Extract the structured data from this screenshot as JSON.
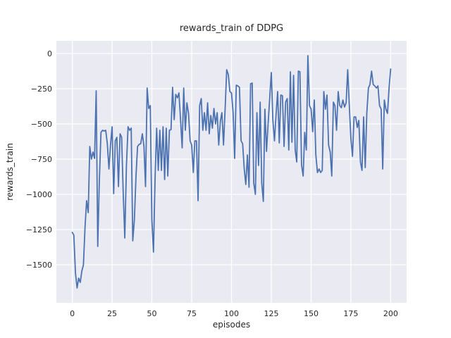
{
  "chart_data": {
    "type": "line",
    "title": "rewards_train of DDPG",
    "xlabel": "episodes",
    "ylabel": "rewards_train",
    "grid": true,
    "legend": null,
    "plot_bg_color": "#EAEAF2",
    "grid_color": "#FFFFFF",
    "figure_bg_color": "#FFFFFF",
    "text_color": "#262626",
    "xlim": [
      -10,
      210
    ],
    "ylim": [
      -1770,
      90
    ],
    "x_tick_values": [
      0,
      25,
      50,
      75,
      100,
      125,
      150,
      175,
      200
    ],
    "x_tick_labels": [
      "0",
      "25",
      "50",
      "75",
      "100",
      "125",
      "150",
      "175",
      "200"
    ],
    "y_tick_values": [
      0,
      -250,
      -500,
      -750,
      -1000,
      -1250,
      -1500
    ],
    "y_tick_labels": [
      "0",
      "−250",
      "−500",
      "−750",
      "−1000",
      "−1250",
      "−1500"
    ],
    "series": [
      {
        "name": "rewards_train",
        "color": "#4C72B0",
        "x_start": 0,
        "x_step": 1,
        "values": [
          -1270,
          -1290,
          -1560,
          -1665,
          -1595,
          -1625,
          -1545,
          -1500,
          -1230,
          -1045,
          -1130,
          -660,
          -750,
          -700,
          -745,
          -265,
          -1370,
          -900,
          -560,
          -545,
          -550,
          -545,
          -640,
          -820,
          -650,
          -520,
          -995,
          -620,
          -595,
          -945,
          -570,
          -595,
          -1000,
          -1310,
          -800,
          -520,
          -545,
          -530,
          -1330,
          -1180,
          -870,
          -660,
          -645,
          -640,
          -570,
          -660,
          -945,
          -245,
          -390,
          -370,
          -1180,
          -1410,
          -880,
          -530,
          -830,
          -545,
          -830,
          -520,
          -895,
          -530,
          -870,
          -545,
          -540,
          -240,
          -470,
          -290,
          -315,
          -280,
          -470,
          -670,
          -245,
          -545,
          -350,
          -425,
          -620,
          -650,
          -845,
          -620,
          -620,
          -1045,
          -370,
          -320,
          -545,
          -420,
          -545,
          -350,
          -570,
          -440,
          -530,
          -390,
          -500,
          -420,
          -650,
          -480,
          -420,
          -650,
          -390,
          -115,
          -150,
          -270,
          -280,
          -420,
          -745,
          -225,
          -230,
          -240,
          -620,
          -640,
          -820,
          -930,
          -720,
          -950,
          -215,
          -210,
          -920,
          -1000,
          -420,
          -795,
          -345,
          -920,
          -1050,
          -395,
          -695,
          -495,
          -320,
          -135,
          -470,
          -620,
          -430,
          -270,
          -635,
          -295,
          -300,
          -660,
          -345,
          -320,
          -685,
          -130,
          -630,
          -155,
          -685,
          -770,
          -125,
          -130,
          -790,
          -870,
          -560,
          -685,
          -15,
          -370,
          -395,
          -555,
          -330,
          -720,
          -845,
          -820,
          -845,
          -830,
          -270,
          -395,
          -295,
          -650,
          -700,
          -870,
          -345,
          -370,
          -545,
          -270,
          -370,
          -385,
          -330,
          -380,
          -350,
          -115,
          -370,
          -600,
          -730,
          -450,
          -450,
          -525,
          -475,
          -770,
          -830,
          -450,
          -810,
          -425,
          -245,
          -220,
          -125,
          -220,
          -230,
          -245,
          -230,
          -370,
          -395,
          -820,
          -330,
          -395,
          -425,
          -245,
          -110
        ]
      }
    ]
  }
}
